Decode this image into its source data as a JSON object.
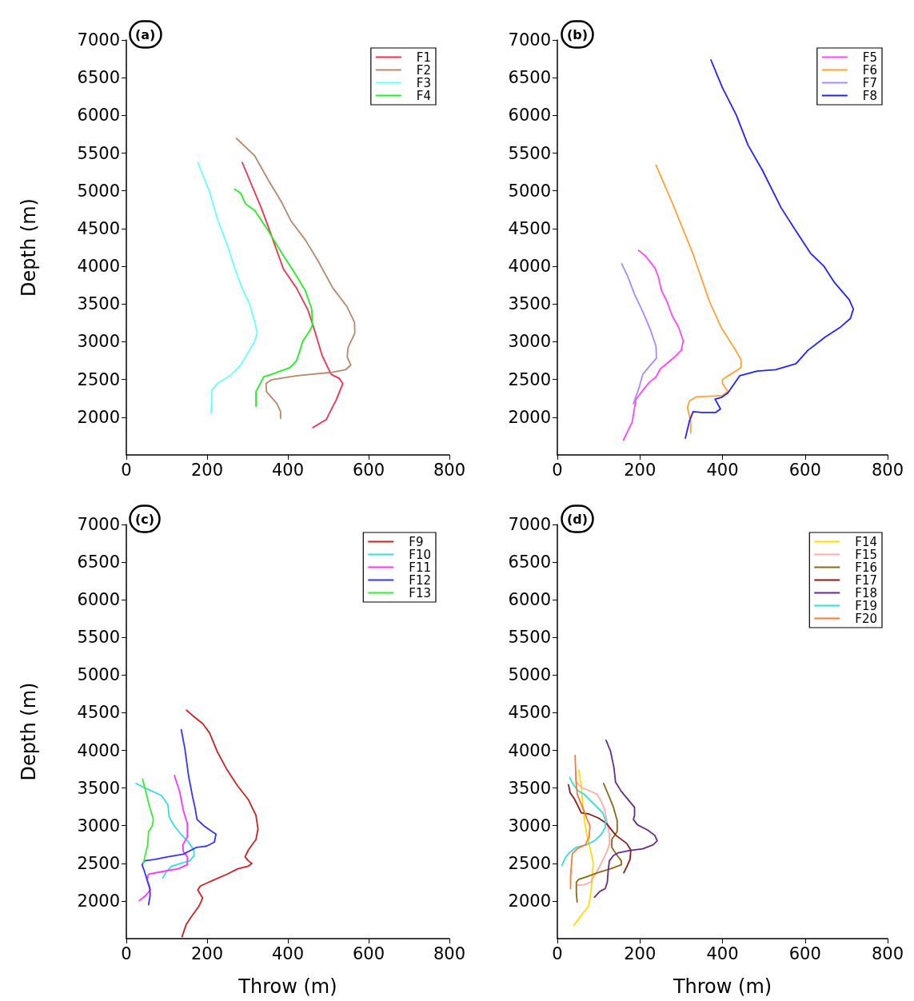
{
  "chart_data": [
    {
      "type": "line",
      "title": "(a)",
      "ylabel": "Depth (m)",
      "xlim": [
        0,
        800
      ],
      "xticks": [
        0,
        200,
        400,
        600,
        800
      ],
      "ylim": [
        1500,
        7000
      ],
      "yticks": [
        2000,
        2500,
        3000,
        3500,
        4000,
        4500,
        5000,
        5500,
        6000,
        6500,
        7000
      ],
      "legend": "top right",
      "series": [
        {
          "name": "F1",
          "color": "#f0304f",
          "x": [
            287,
            334,
            356,
            389,
            421,
            450,
            462,
            485,
            507,
            527,
            536,
            520,
            495,
            462
          ],
          "values": [
            5376,
            4776,
            4458,
            3964,
            3716,
            3416,
            3222,
            2816,
            2569,
            2516,
            2445,
            2233,
            1968,
            1863
          ]
        },
        {
          "name": "F2",
          "color": "#b8886a",
          "x": [
            273,
            318,
            353,
            385,
            408,
            443,
            475,
            511,
            546,
            565,
            566,
            549,
            547,
            556,
            543,
            507,
            424,
            360,
            346,
            347,
            373,
            382,
            382
          ],
          "values": [
            5694,
            5464,
            5129,
            4846,
            4599,
            4352,
            4070,
            3716,
            3469,
            3257,
            3116,
            2922,
            2798,
            2692,
            2629,
            2594,
            2551,
            2498,
            2445,
            2339,
            2180,
            2074,
            1986
          ]
        },
        {
          "name": "F3",
          "color": "#66ffff",
          "x": [
            177,
            206,
            225,
            250,
            267,
            286,
            305,
            318,
            324,
            318,
            299,
            283,
            257,
            225,
            212,
            210
          ],
          "values": [
            5376,
            4988,
            4634,
            4281,
            3999,
            3716,
            3505,
            3257,
            3116,
            3010,
            2834,
            2692,
            2551,
            2445,
            2357,
            2057
          ]
        },
        {
          "name": "F4",
          "color": "#22ee22",
          "x": [
            268,
            283,
            295,
            318,
            353,
            385,
            417,
            443,
            459,
            461,
            453,
            437,
            427,
            421,
            405,
            360,
            340,
            321,
            321
          ],
          "values": [
            5023,
            4970,
            4829,
            4740,
            4458,
            4175,
            3911,
            3681,
            3434,
            3222,
            3134,
            3010,
            2834,
            2745,
            2657,
            2569,
            2534,
            2339,
            2145
          ]
        }
      ]
    },
    {
      "type": "line",
      "title": "(b)",
      "xlim": [
        0,
        800
      ],
      "xticks": [
        0,
        200,
        400,
        600,
        800
      ],
      "ylim": [
        1500,
        7000
      ],
      "yticks": [
        2000,
        2500,
        3000,
        3500,
        4000,
        4500,
        5000,
        5500,
        6000,
        6500,
        7000
      ],
      "legend": "top right",
      "series": [
        {
          "name": "F5",
          "color": "#ff44ff",
          "x": [
            197,
            213,
            236,
            245,
            252,
            265,
            278,
            294,
            305,
            300,
            284,
            261,
            249,
            239,
            223,
            207,
            190,
            187,
            181,
            160
          ],
          "values": [
            4211,
            4140,
            3981,
            3858,
            3681,
            3540,
            3346,
            3187,
            3010,
            2886,
            2798,
            2692,
            2639,
            2533,
            2463,
            2357,
            2233,
            2127,
            1933,
            1696
          ]
        },
        {
          "name": "F6",
          "color": "#ffa033",
          "x": [
            239,
            278,
            329,
            368,
            397,
            426,
            445,
            445,
            420,
            400,
            400,
            413,
            400,
            336,
            320,
            315,
            323,
            323
          ],
          "values": [
            5341,
            4846,
            4158,
            3540,
            3187,
            2939,
            2763,
            2657,
            2569,
            2498,
            2445,
            2339,
            2286,
            2269,
            2216,
            2127,
            1951,
            1792
          ]
        },
        {
          "name": "F7",
          "color": "#aa88ff",
          "x": [
            156,
            171,
            187,
            207,
            226,
            239,
            240,
            223,
            207,
            197,
            184
          ],
          "values": [
            4034,
            3858,
            3628,
            3399,
            3151,
            2939,
            2781,
            2675,
            2569,
            2375,
            2180
          ]
        },
        {
          "name": "F8",
          "color": "#2222ff",
          "x": [
            372,
            400,
            433,
            462,
            497,
            542,
            575,
            613,
            646,
            671,
            707,
            717,
            710,
            684,
            649,
            607,
            578,
            529,
            484,
            442,
            413,
            397,
            382,
            395,
            384,
            349,
            329,
            320,
            310
          ],
          "values": [
            6735,
            6365,
            6011,
            5605,
            5270,
            4776,
            4493,
            4175,
            3999,
            3787,
            3557,
            3434,
            3310,
            3187,
            3063,
            2887,
            2710,
            2629,
            2611,
            2551,
            2321,
            2261,
            2240,
            2110,
            2064,
            2064,
            2074,
            1951,
            1721
          ]
        }
      ]
    },
    {
      "type": "line",
      "title": "(c)",
      "xlabel": "Throw (m)",
      "ylabel": "Depth (m)",
      "xlim": [
        0,
        800
      ],
      "xticks": [
        0,
        200,
        400,
        600,
        800
      ],
      "ylim": [
        1500,
        7000
      ],
      "yticks": [
        2000,
        2500,
        3000,
        3500,
        4000,
        4500,
        5000,
        5500,
        6000,
        6500,
        7000
      ],
      "legend": "top right",
      "series": [
        {
          "name": "F9",
          "color": "#cc2222",
          "x": [
            149,
            164,
            189,
            206,
            225,
            250,
            276,
            302,
            321,
            326,
            321,
            302,
            294,
            302,
            311,
            302,
            276,
            250,
            212,
            183,
            177,
            183,
            189,
            180,
            161,
            148,
            138
          ],
          "values": [
            4534,
            4463,
            4357,
            4233,
            3985,
            3737,
            3525,
            3348,
            3136,
            2959,
            2817,
            2676,
            2587,
            2534,
            2499,
            2463,
            2428,
            2357,
            2269,
            2198,
            2145,
            2092,
            2039,
            1932,
            1791,
            1685,
            1525
          ]
        },
        {
          "name": "F10",
          "color": "#33dddd",
          "x": [
            24,
            51,
            87,
            103,
            106,
            119,
            135,
            154,
            167,
            168,
            157,
            135,
            112,
            100,
            90
          ],
          "values": [
            3560,
            3490,
            3401,
            3277,
            3118,
            2994,
            2888,
            2782,
            2676,
            2605,
            2534,
            2499,
            2463,
            2392,
            2304
          ]
        },
        {
          "name": "F11",
          "color": "#ff33ff",
          "x": [
            119,
            132,
            141,
            151,
            151,
            140,
            141,
            151,
            151,
            128,
            90,
            55,
            51,
            59,
            48,
            32
          ],
          "values": [
            3666,
            3454,
            3206,
            3029,
            2852,
            2746,
            2658,
            2587,
            2481,
            2428,
            2392,
            2357,
            2286,
            2145,
            2074,
            2003
          ]
        },
        {
          "name": "F12",
          "color": "#3333ff",
          "x": [
            136,
            145,
            154,
            164,
            170,
            175,
            193,
            212,
            222,
            218,
            199,
            173,
            141,
            103,
            71,
            45,
            39,
            45,
            51,
            58,
            59,
            55
          ],
          "values": [
            4275,
            4020,
            3666,
            3383,
            3242,
            3083,
            2994,
            2923,
            2888,
            2782,
            2729,
            2711,
            2622,
            2587,
            2552,
            2534,
            2481,
            2392,
            2286,
            2180,
            2074,
            1950
          ]
        },
        {
          "name": "F13",
          "color": "#33ee33",
          "x": [
            40,
            48,
            58,
            67,
            64,
            55,
            53,
            48,
            42
          ],
          "values": [
            3620,
            3454,
            3242,
            3083,
            2994,
            2923,
            2746,
            2640,
            2499
          ]
        }
      ]
    },
    {
      "type": "line",
      "title": "(d)",
      "xlabel": "Throw (m)",
      "xlim": [
        0,
        800
      ],
      "xticks": [
        0,
        200,
        400,
        600,
        800
      ],
      "ylim": [
        1500,
        7000
      ],
      "yticks": [
        2000,
        2500,
        3000,
        3500,
        4000,
        4500,
        5000,
        5500,
        6000,
        6500,
        7000
      ],
      "legend": "top right",
      "series": [
        {
          "name": "F14",
          "color": "#ffdd00",
          "x": [
            52,
            58,
            61,
            65,
            71,
            77,
            83,
            87,
            84,
            81,
            76,
            58,
            40
          ],
          "values": [
            3738,
            3525,
            3313,
            3101,
            2888,
            2747,
            2605,
            2499,
            2287,
            2110,
            1933,
            1809,
            1675
          ]
        },
        {
          "name": "F15",
          "color": "#ffaaaa",
          "x": [
            46,
            58,
            74,
            96,
            107,
            115,
            121,
            126,
            126,
            116,
            103,
            90,
            81,
            65,
            48
          ],
          "values": [
            3579,
            3508,
            3472,
            3419,
            3313,
            3207,
            3030,
            2888,
            2747,
            2605,
            2464,
            2340,
            2251,
            2216,
            2209
          ]
        },
        {
          "name": "F16",
          "color": "#8b6914",
          "x": [
            112,
            123,
            136,
            145,
            145,
            132,
            132,
            145,
            155,
            155,
            129,
            97,
            71,
            52,
            46,
            46,
            48
          ],
          "values": [
            3561,
            3419,
            3242,
            3065,
            2924,
            2818,
            2711,
            2605,
            2534,
            2481,
            2428,
            2375,
            2322,
            2287,
            2251,
            2110,
            1986
          ]
        },
        {
          "name": "F17",
          "color": "#8b1a1a",
          "x": [
            27,
            31,
            42,
            58,
            77,
            100,
            119,
            129,
            142,
            168,
            178,
            176,
            169,
            161
          ],
          "values": [
            3543,
            3437,
            3349,
            3171,
            3154,
            3101,
            3030,
            2959,
            2871,
            2765,
            2676,
            2552,
            2464,
            2375
          ]
        },
        {
          "name": "F18",
          "color": "#6a2a8a",
          "x": [
            118,
            129,
            137,
            141,
            155,
            171,
            187,
            187,
            184,
            194,
            219,
            236,
            242,
            232,
            207,
            174,
            148,
            136,
            126,
            123,
            121,
            116,
            103,
            90
          ],
          "values": [
            4134,
            3985,
            3773,
            3578,
            3455,
            3349,
            3242,
            3136,
            3083,
            3012,
            2942,
            2871,
            2800,
            2747,
            2694,
            2669,
            2641,
            2605,
            2534,
            2393,
            2251,
            2163,
            2128,
            2050
          ]
        },
        {
          "name": "F19",
          "color": "#33dddd",
          "x": [
            30,
            39,
            52,
            65,
            81,
            97,
            110,
            117,
            116,
            107,
            90,
            71,
            45,
            29,
            19,
            11
          ],
          "values": [
            3639,
            3543,
            3455,
            3419,
            3331,
            3242,
            3171,
            3065,
            2977,
            2888,
            2800,
            2747,
            2711,
            2641,
            2570,
            2471
          ]
        },
        {
          "name": "F20",
          "color": "#ff7733",
          "x": [
            43,
            45,
            48,
            61,
            71,
            79,
            77,
            68,
            48,
            36,
            34,
            32,
            32
          ],
          "values": [
            3932,
            3596,
            3419,
            3242,
            3101,
            2995,
            2853,
            2747,
            2694,
            2623,
            2464,
            2322,
            2163
          ]
        }
      ]
    }
  ]
}
